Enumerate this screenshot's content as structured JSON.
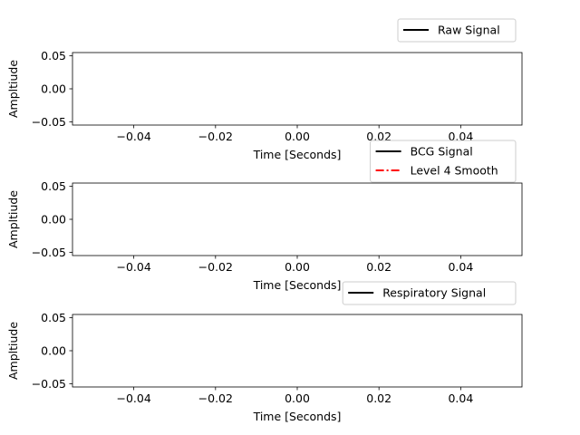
{
  "chart_data": [
    {
      "type": "line",
      "title": "",
      "xlabel": "Time [Seconds]",
      "ylabel": "Ampltiude",
      "xlim": [
        -0.055,
        0.055
      ],
      "ylim": [
        -0.055,
        0.055
      ],
      "xticks": [
        -0.04,
        -0.02,
        0.0,
        0.02,
        0.04
      ],
      "xtick_labels": [
        "−0.04",
        "−0.02",
        "0.00",
        "0.02",
        "0.04"
      ],
      "yticks": [
        -0.05,
        0.0,
        0.05
      ],
      "ytick_labels": [
        "−0.05",
        "0.00",
        "0.05"
      ],
      "grid": false,
      "legend_position": "upper-right-outside",
      "series": [
        {
          "name": "Raw Signal",
          "color": "#000000",
          "style": "solid",
          "x": [],
          "y": []
        }
      ]
    },
    {
      "type": "line",
      "title": "",
      "xlabel": "Time [Seconds]",
      "ylabel": "Ampltiude",
      "xlim": [
        -0.055,
        0.055
      ],
      "ylim": [
        -0.055,
        0.055
      ],
      "xticks": [
        -0.04,
        -0.02,
        0.0,
        0.02,
        0.04
      ],
      "xtick_labels": [
        "−0.04",
        "−0.02",
        "0.00",
        "0.02",
        "0.04"
      ],
      "yticks": [
        -0.05,
        0.0,
        0.05
      ],
      "ytick_labels": [
        "−0.05",
        "0.00",
        "0.05"
      ],
      "grid": false,
      "legend_position": "upper-right-outside",
      "series": [
        {
          "name": "BCG Signal",
          "color": "#000000",
          "style": "solid",
          "x": [],
          "y": []
        },
        {
          "name": "Level 4 Smooth",
          "color": "#ff0000",
          "style": "dashdot",
          "x": [],
          "y": []
        }
      ]
    },
    {
      "type": "line",
      "title": "",
      "xlabel": "Time [Seconds]",
      "ylabel": "Ampltiude",
      "xlim": [
        -0.055,
        0.055
      ],
      "ylim": [
        -0.055,
        0.055
      ],
      "xticks": [
        -0.04,
        -0.02,
        0.0,
        0.02,
        0.04
      ],
      "xtick_labels": [
        "−0.04",
        "−0.02",
        "0.00",
        "0.02",
        "0.04"
      ],
      "yticks": [
        -0.05,
        0.0,
        0.05
      ],
      "ytick_labels": [
        "−0.05",
        "0.00",
        "0.05"
      ],
      "grid": false,
      "legend_position": "upper-right-outside",
      "series": [
        {
          "name": "Respiratory Signal",
          "color": "#000000",
          "style": "solid",
          "x": [],
          "y": []
        }
      ]
    }
  ]
}
